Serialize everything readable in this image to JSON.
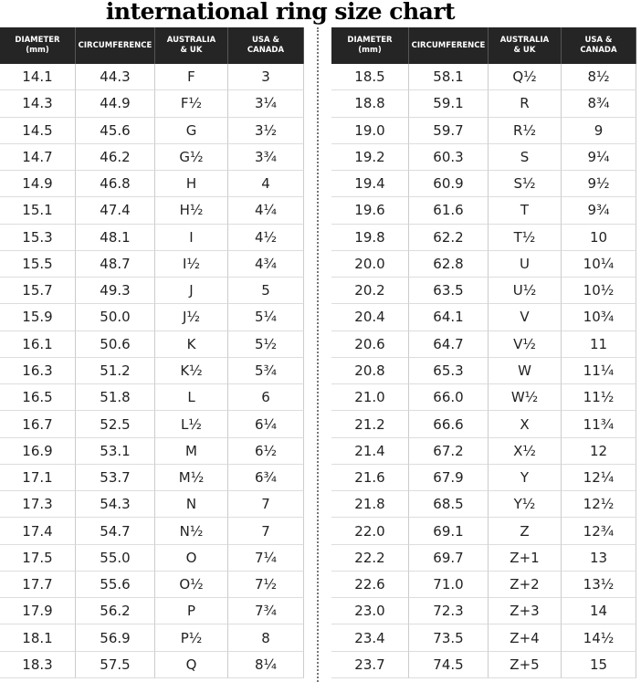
{
  "title": "international ring size chart",
  "tables": [
    {
      "headers": [
        "DIAMETER\n(mm)",
        "CIRCUMFERENCE",
        "AUSTRALIA\n& UK",
        "USA &\nCANADA"
      ],
      "rows": [
        [
          "14.1",
          "44.3",
          "F",
          "3"
        ],
        [
          "14.3",
          "44.9",
          "F½",
          "3¼"
        ],
        [
          "14.5",
          "45.6",
          "G",
          "3½"
        ],
        [
          "14.7",
          "46.2",
          "G½",
          "3¾"
        ],
        [
          "14.9",
          "46.8",
          "H",
          "4"
        ],
        [
          "15.1",
          "47.4",
          "H½",
          "4¼"
        ],
        [
          "15.3",
          "48.1",
          "I",
          "4½"
        ],
        [
          "15.5",
          "48.7",
          "I½",
          "4¾"
        ],
        [
          "15.7",
          "49.3",
          "J",
          "5"
        ],
        [
          "15.9",
          "50.0",
          "J½",
          "5¼"
        ],
        [
          "16.1",
          "50.6",
          "K",
          "5½"
        ],
        [
          "16.3",
          "51.2",
          "K½",
          "5¾"
        ],
        [
          "16.5",
          "51.8",
          "L",
          "6"
        ],
        [
          "16.7",
          "52.5",
          "L½",
          "6¼"
        ],
        [
          "16.9",
          "53.1",
          "M",
          "6½"
        ],
        [
          "17.1",
          "53.7",
          "M½",
          "6¾"
        ],
        [
          "17.3",
          "54.3",
          "N",
          "7"
        ],
        [
          "17.4",
          "54.7",
          "N½",
          "7"
        ],
        [
          "17.5",
          "55.0",
          "O",
          "7¼"
        ],
        [
          "17.7",
          "55.6",
          "O½",
          "7½"
        ],
        [
          "17.9",
          "56.2",
          "P",
          "7¾"
        ],
        [
          "18.1",
          "56.9",
          "P½",
          "8"
        ],
        [
          "18.3",
          "57.5",
          "Q",
          "8¼"
        ]
      ]
    },
    {
      "headers": [
        "DIAMETER\n(mm)",
        "CIRCUMFERENCE",
        "AUSTRALIA\n& UK",
        "USA &\nCANADA"
      ],
      "rows": [
        [
          "18.5",
          "58.1",
          "Q½",
          "8½"
        ],
        [
          "18.8",
          "59.1",
          "R",
          "8¾"
        ],
        [
          "19.0",
          "59.7",
          "R½",
          "9"
        ],
        [
          "19.2",
          "60.3",
          "S",
          "9¼"
        ],
        [
          "19.4",
          "60.9",
          "S½",
          "9½"
        ],
        [
          "19.6",
          "61.6",
          "T",
          "9¾"
        ],
        [
          "19.8",
          "62.2",
          "T½",
          "10"
        ],
        [
          "20.0",
          "62.8",
          "U",
          "10¼"
        ],
        [
          "20.2",
          "63.5",
          "U½",
          "10½"
        ],
        [
          "20.4",
          "64.1",
          "V",
          "10¾"
        ],
        [
          "20.6",
          "64.7",
          "V½",
          "11"
        ],
        [
          "20.8",
          "65.3",
          "W",
          "11¼"
        ],
        [
          "21.0",
          "66.0",
          "W½",
          "11½"
        ],
        [
          "21.2",
          "66.6",
          "X",
          "11¾"
        ],
        [
          "21.4",
          "67.2",
          "X½",
          "12"
        ],
        [
          "21.6",
          "67.9",
          "Y",
          "12¼"
        ],
        [
          "21.8",
          "68.5",
          "Y½",
          "12½"
        ],
        [
          "22.0",
          "69.1",
          "Z",
          "12¾"
        ],
        [
          "22.2",
          "69.7",
          "Z+1",
          "13"
        ],
        [
          "22.6",
          "71.0",
          "Z+2",
          "13½"
        ],
        [
          "23.0",
          "72.3",
          "Z+3",
          "14"
        ],
        [
          "23.4",
          "73.5",
          "Z+4",
          "14½"
        ],
        [
          "23.7",
          "74.5",
          "Z+5",
          "15"
        ]
      ]
    }
  ]
}
